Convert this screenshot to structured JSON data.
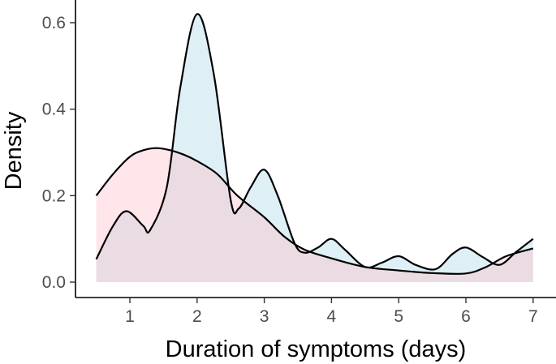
{
  "chart_data": {
    "type": "area",
    "xlabel": "Duration of symptoms (days)",
    "ylabel": "Density",
    "xlim": [
      0.5,
      7.0
    ],
    "ylim": [
      0.0,
      0.65
    ],
    "x_ticks": [
      1,
      2,
      3,
      4,
      5,
      6,
      7
    ],
    "y_ticks": [
      0.0,
      0.2,
      0.4,
      0.6
    ],
    "y_tick_labels": [
      "0.0",
      "0.2",
      "0.4",
      "0.6"
    ],
    "grid": false,
    "legend": "none",
    "series": [
      {
        "color": "#add8e6",
        "points": [
          [
            0.5,
            0.053
          ],
          [
            0.75,
            0.13
          ],
          [
            0.95,
            0.164
          ],
          [
            1.2,
            0.13
          ],
          [
            1.3,
            0.12
          ],
          [
            1.55,
            0.22
          ],
          [
            1.75,
            0.45
          ],
          [
            2.0,
            0.62
          ],
          [
            2.25,
            0.48
          ],
          [
            2.5,
            0.19
          ],
          [
            2.62,
            0.17
          ],
          [
            2.8,
            0.22
          ],
          [
            3.0,
            0.26
          ],
          [
            3.2,
            0.2
          ],
          [
            3.45,
            0.09
          ],
          [
            3.6,
            0.068
          ],
          [
            3.8,
            0.08
          ],
          [
            4.0,
            0.1
          ],
          [
            4.2,
            0.075
          ],
          [
            4.5,
            0.035
          ],
          [
            4.75,
            0.045
          ],
          [
            5.0,
            0.06
          ],
          [
            5.25,
            0.04
          ],
          [
            5.55,
            0.03
          ],
          [
            5.8,
            0.065
          ],
          [
            6.0,
            0.08
          ],
          [
            6.25,
            0.058
          ],
          [
            6.5,
            0.04
          ],
          [
            6.75,
            0.07
          ],
          [
            7.0,
            0.1
          ]
        ]
      },
      {
        "color": "#ffc0cb",
        "points": [
          [
            0.5,
            0.2
          ],
          [
            0.75,
            0.25
          ],
          [
            1.0,
            0.29
          ],
          [
            1.2,
            0.305
          ],
          [
            1.4,
            0.31
          ],
          [
            1.6,
            0.305
          ],
          [
            1.8,
            0.295
          ],
          [
            2.0,
            0.28
          ],
          [
            2.3,
            0.25
          ],
          [
            2.6,
            0.2
          ],
          [
            3.0,
            0.15
          ],
          [
            3.3,
            0.105
          ],
          [
            3.6,
            0.075
          ],
          [
            4.0,
            0.055
          ],
          [
            4.5,
            0.035
          ],
          [
            5.0,
            0.027
          ],
          [
            5.5,
            0.021
          ],
          [
            6.0,
            0.02
          ],
          [
            6.3,
            0.035
          ],
          [
            6.6,
            0.06
          ],
          [
            7.0,
            0.078
          ]
        ]
      }
    ]
  }
}
